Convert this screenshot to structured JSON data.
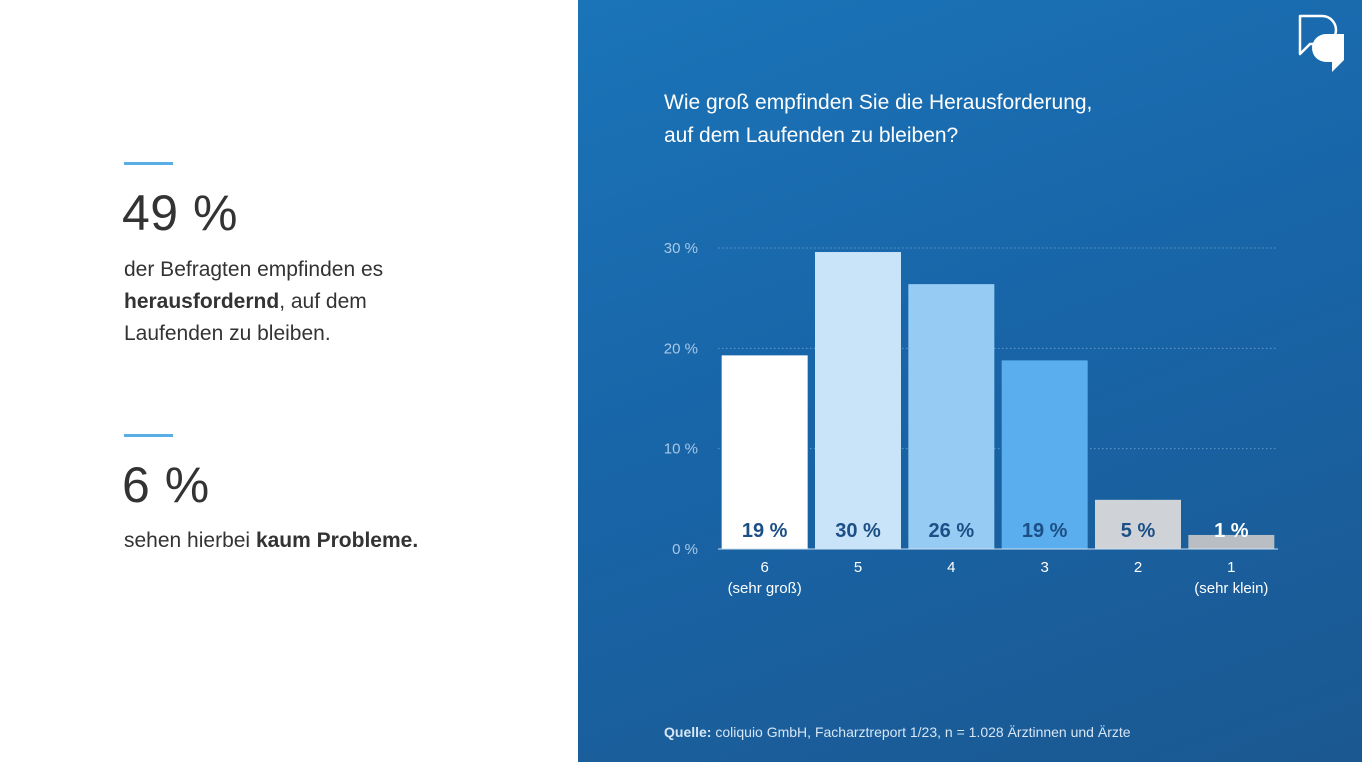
{
  "left": {
    "stat1": {
      "value": "49 %",
      "line1": "der Befragten empfinden es",
      "bold": "herausfordernd",
      "line2_rest": ", auf dem",
      "line3": "Laufenden zu bleiben."
    },
    "stat2": {
      "value": "6 %",
      "text": "sehen hierbei ",
      "bold": "kaum Probleme."
    }
  },
  "chart_data": {
    "type": "bar",
    "title": "Wie groß empfinden Sie die Herausforderung, auf dem Laufenden zu bleiben?",
    "title_lines": [
      "Wie groß empfinden Sie die Herausforderung,",
      "auf dem Laufenden zu bleiben?"
    ],
    "categories": [
      "6",
      "5",
      "4",
      "3",
      "2",
      "1"
    ],
    "category_sublabels": [
      "(sehr groß)",
      "",
      "",
      "",
      "",
      "(sehr klein)"
    ],
    "values": [
      19,
      30,
      26,
      19,
      5,
      1
    ],
    "bar_heights": [
      19.3,
      29.6,
      26.4,
      18.8,
      4.9,
      1.4
    ],
    "data_labels": [
      "19 %",
      "30 %",
      "26 %",
      "19 %",
      "5 %",
      "1 %"
    ],
    "bar_colors": [
      "#ffffff",
      "#c9e3f8",
      "#96cbf3",
      "#5aaeed",
      "#cfd3d8",
      "#b9bec5"
    ],
    "label_colors": [
      "#1c4f86",
      "#1c4f86",
      "#1c4f86",
      "#1c4f86",
      "#1c4f86",
      "#ffffff"
    ],
    "ylim": [
      0,
      30
    ],
    "yticks": [
      0,
      10,
      20,
      30
    ],
    "ytick_labels": [
      "0 %",
      "10 %",
      "20 %",
      "30 %"
    ],
    "grid": true,
    "xlabel": "",
    "ylabel": ""
  },
  "source": {
    "label": "Quelle:",
    "text": " coliquio GmbH, Facharztreport 1/23, n = 1.028 Ärztinnen und Ärzte"
  },
  "colors": {
    "accent": "#5aaee6",
    "panel_background": "#1865a8",
    "text_dark": "#333333"
  }
}
